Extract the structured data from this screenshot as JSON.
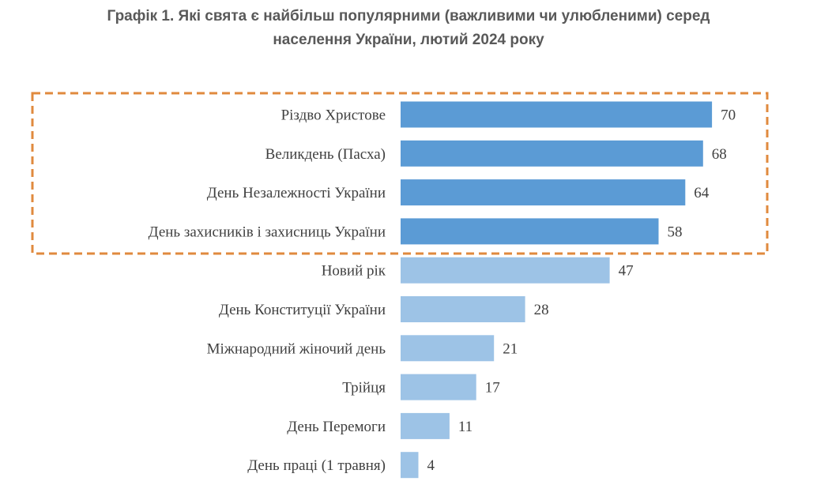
{
  "title": {
    "line1": "Графік 1.  Які свята є найбільш популярними (важливими чи улюбленими) серед",
    "line2": "населення України, лютий 2024 року"
  },
  "colors": {
    "highlight_bar": "#5B9BD5",
    "normal_bar": "#9DC3E6",
    "highlight_box": "#E08A3E",
    "text": "#404040",
    "title": "#595959"
  },
  "chart_data": {
    "type": "bar",
    "orientation": "horizontal",
    "categories": [
      "Різдво Христове",
      "Великдень (Пасха)",
      "День Незалежності України",
      "День захисників і захисниць України",
      "Новий рік",
      "День Конституції України",
      "Міжнародний жіночий день",
      "Трійця",
      "День Перемоги",
      "День праці (1 травня)"
    ],
    "values": [
      70,
      68,
      64,
      58,
      47,
      28,
      21,
      17,
      11,
      4
    ],
    "highlighted": [
      true,
      true,
      true,
      true,
      false,
      false,
      false,
      false,
      false,
      false
    ],
    "xlim": [
      0,
      70
    ],
    "grid": false,
    "legend": "none",
    "title": "Графік 1.  Які свята є найбільш популярними (важливими чи улюбленими) серед населення України, лютий 2024 року",
    "xlabel": "",
    "ylabel": ""
  }
}
